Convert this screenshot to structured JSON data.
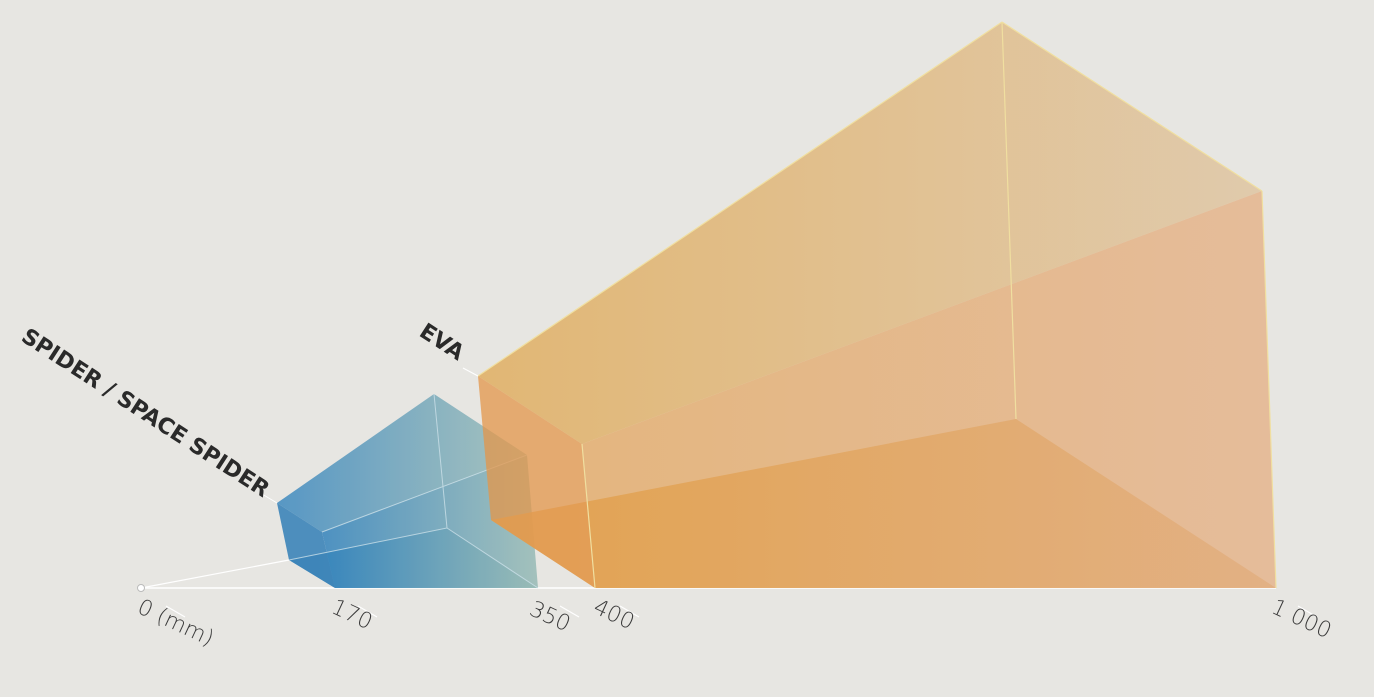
{
  "products": [
    {
      "name": "SPIDER / SPACE SPIDER"
    },
    {
      "name": "EVA"
    }
  ],
  "axis": {
    "ticks": [
      "0 (mm)",
      "170",
      "350",
      "400",
      "1 000"
    ]
  }
}
